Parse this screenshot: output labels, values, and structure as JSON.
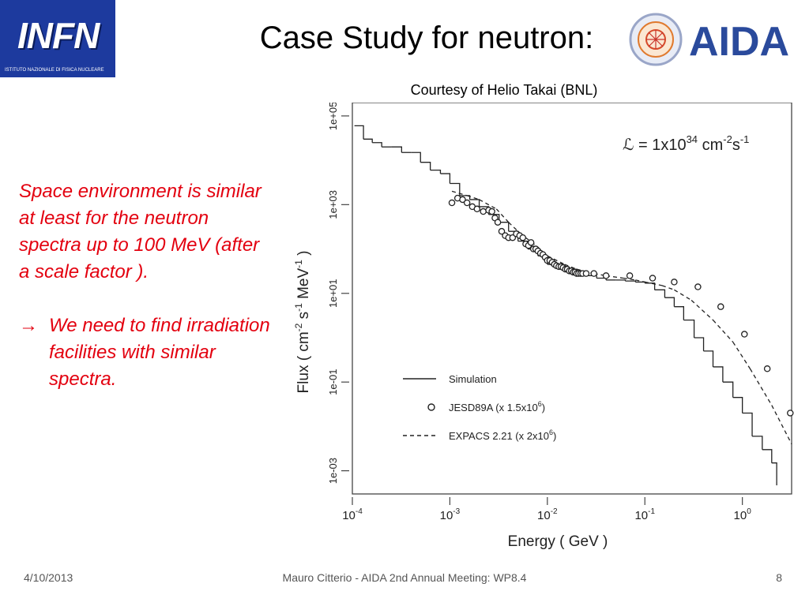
{
  "header": {
    "infn_logo_text": "INFN",
    "infn_logo_subtitle": "ISTITUTO NAZIONALE DI FISICA NUCLEARE",
    "title": "Case Study for neutron:",
    "aida_logo_text": "AIDA"
  },
  "courtesy": "Courtesy of Helio Takai (BNL)",
  "side_text": {
    "paragraph": "Space environment is similar at least for the neutron spectra up to 100 MeV (after a scale factor ).",
    "arrow_symbol": "→",
    "arrow_paragraph": "We need to find irradiation facilities with similar spectra."
  },
  "footer": {
    "date": "4/10/2013",
    "center": "Mauro Citterio - AIDA 2nd Annual Meeting: WP8.4",
    "page": "8"
  },
  "chart_data": {
    "type": "line",
    "title": "",
    "xlabel": "Energy ( GeV )",
    "ylabel": "Flux ( cm-2 s-1 MeV-1 )",
    "x_scale": "log",
    "y_scale": "log",
    "xlim": [
      0.0001,
      3.2
    ],
    "ylim": [
      0.0003,
      200000
    ],
    "x_ticks": [
      {
        "value": 0.0001,
        "base": "10",
        "exp": "-4"
      },
      {
        "value": 0.001,
        "base": "10",
        "exp": "-3"
      },
      {
        "value": 0.01,
        "base": "10",
        "exp": "-2"
      },
      {
        "value": 0.1,
        "base": "10",
        "exp": "-1"
      },
      {
        "value": 1,
        "base": "10",
        "exp": "0"
      }
    ],
    "y_ticks": [
      {
        "value": 0.001,
        "label": "1e-03"
      },
      {
        "value": 0.1,
        "label": "1e-01"
      },
      {
        "value": 10,
        "label": "1e+01"
      },
      {
        "value": 1000,
        "label": "1e+03"
      },
      {
        "value": 100000,
        "label": "1e+05"
      }
    ],
    "annotation": {
      "prefix": "ℒ = 1x10",
      "exp1": "34",
      "mid": " cm",
      "exp2": "-2",
      "mid2": "s",
      "exp3": "-1"
    },
    "legend_position": "bottom-right",
    "series": [
      {
        "name": "Simulation",
        "style": "step",
        "legend": {
          "text": "Simulation"
        },
        "x": [
          0.000105,
          0.00013,
          0.00016,
          0.0002,
          0.00025,
          0.00032,
          0.0004,
          0.0005,
          0.00063,
          0.0008,
          0.001,
          0.00126,
          0.0016,
          0.002,
          0.0025,
          0.0032,
          0.004,
          0.005,
          0.0063,
          0.008,
          0.01,
          0.0126,
          0.016,
          0.02,
          0.025,
          0.032,
          0.04,
          0.05,
          0.063,
          0.08,
          0.1,
          0.126,
          0.16,
          0.2,
          0.25,
          0.32,
          0.4,
          0.5,
          0.63,
          0.8,
          1.0,
          1.26,
          1.6,
          2.0,
          2.25
        ],
        "values": [
          60000,
          30000,
          25000,
          20000,
          20000,
          15000,
          15000,
          9000,
          6000,
          5000,
          3000,
          1600,
          1300,
          900,
          600,
          400,
          250,
          150,
          100,
          70,
          45,
          40,
          35,
          28,
          25,
          22,
          20,
          20,
          19,
          18,
          17,
          12,
          8,
          5,
          2.5,
          1.0,
          0.5,
          0.22,
          0.1,
          0.045,
          0.02,
          0.006,
          0.003,
          0.0015,
          0.0006
        ]
      },
      {
        "name": "JESD89A",
        "style": "markers",
        "legend": {
          "text": "JESD89A (x 1.5x10",
          "exp": "6",
          "suffix": ")"
        },
        "x": [
          0.00105,
          0.0012,
          0.00135,
          0.0015,
          0.0017,
          0.0019,
          0.0022,
          0.0025,
          0.0027,
          0.0029,
          0.0031,
          0.0034,
          0.0037,
          0.004,
          0.0044,
          0.0048,
          0.0052,
          0.0056,
          0.006,
          0.0064,
          0.0068,
          0.0072,
          0.0076,
          0.008,
          0.0085,
          0.009,
          0.0095,
          0.01,
          0.0106,
          0.0112,
          0.0118,
          0.0124,
          0.0131,
          0.0138,
          0.0145,
          0.0153,
          0.016,
          0.0168,
          0.0176,
          0.0184,
          0.0192,
          0.02,
          0.0209,
          0.022,
          0.023,
          0.025,
          0.03,
          0.04,
          0.07,
          0.12,
          0.2,
          0.35,
          0.6,
          1.05,
          1.8,
          3.1
        ],
        "values": [
          1100,
          1400,
          1300,
          1100,
          900,
          800,
          700,
          750,
          700,
          500,
          400,
          250,
          200,
          180,
          180,
          220,
          200,
          180,
          130,
          120,
          140,
          100,
          100,
          90,
          80,
          75,
          65,
          55,
          55,
          50,
          45,
          42,
          40,
          40,
          38,
          35,
          35,
          32,
          32,
          30,
          30,
          28,
          28,
          28,
          28,
          28,
          28,
          25,
          25,
          22,
          18,
          14,
          5,
          1.2,
          0.2,
          0.02
        ]
      },
      {
        "name": "EXPACS 2.21",
        "style": "dashed",
        "legend": {
          "text": "EXPACS 2.21 (x 2x10",
          "exp": "6",
          "suffix": ")"
        },
        "x": [
          0.00105,
          0.0015,
          0.002,
          0.003,
          0.004,
          0.005,
          0.006,
          0.008,
          0.01,
          0.015,
          0.02,
          0.03,
          0.04,
          0.06,
          0.08,
          0.1,
          0.15,
          0.2,
          0.3,
          0.5,
          0.8,
          1.2,
          2.0,
          3.2
        ],
        "values": [
          2000,
          1600,
          1300,
          800,
          400,
          250,
          180,
          110,
          70,
          45,
          35,
          28,
          25,
          22,
          20,
          18,
          15,
          12,
          7,
          2.5,
          0.8,
          0.2,
          0.03,
          0.004
        ]
      }
    ]
  }
}
